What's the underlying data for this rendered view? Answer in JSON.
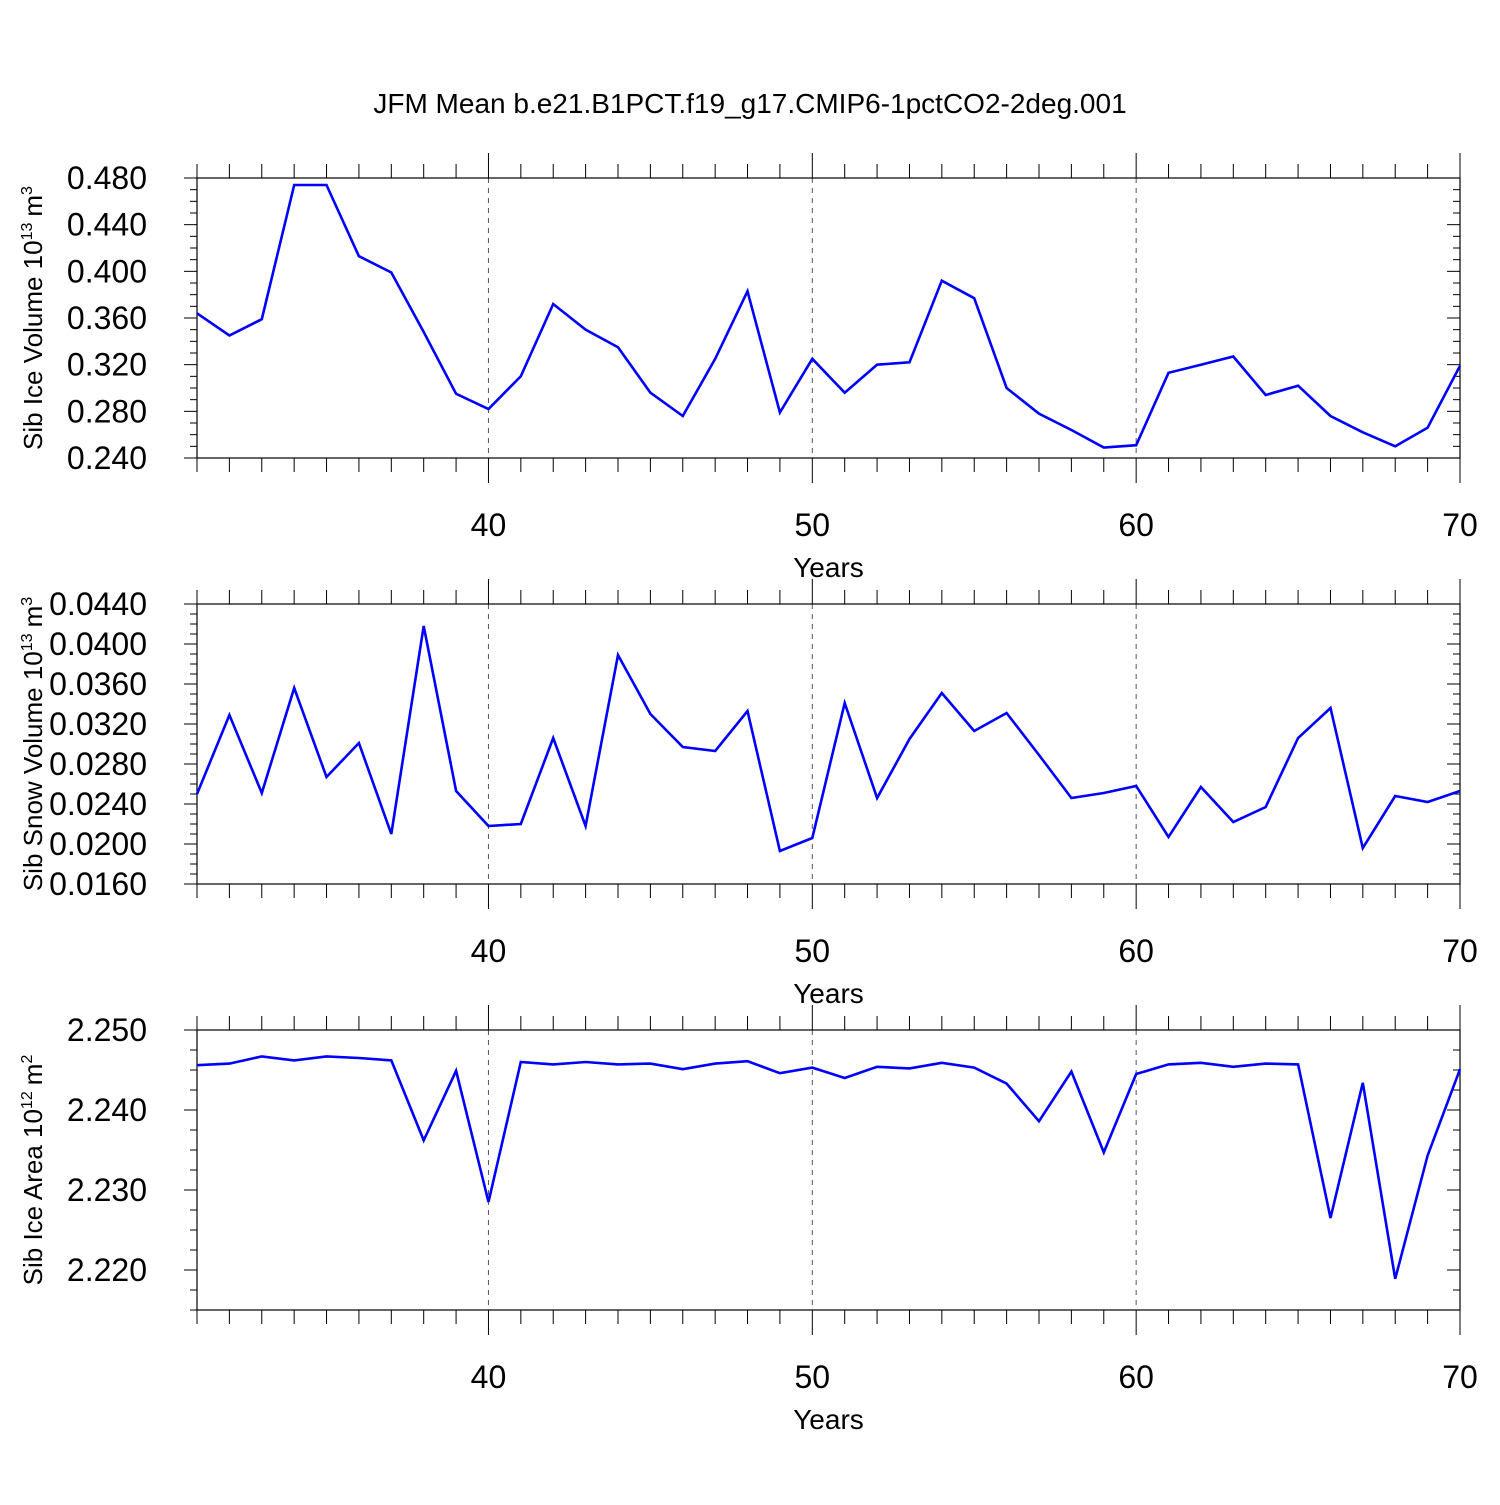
{
  "title": "JFM Mean b.e21.B1PCT.f19_g17.CMIP6-1pctCO2-2deg.001",
  "colors": {
    "line": "#0000ff",
    "axis": "#000000",
    "grid": "#555555"
  },
  "chart_data": [
    {
      "type": "line",
      "ylabel": "Sib Ice Volume 10",
      "ylabel_exponent": "13",
      "ylabel_unit": "m",
      "ylabel_unit_power": "3",
      "xlabel": "Years",
      "xlim": [
        31,
        70
      ],
      "ylim": [
        0.24,
        0.48
      ],
      "xticks": [
        "40",
        "50",
        "60",
        "70"
      ],
      "yticks": [
        "0.240",
        "0.280",
        "0.320",
        "0.360",
        "0.400",
        "0.440",
        "0.480"
      ],
      "grid": "dashed vertical at 40, 50, 60",
      "x": [
        31,
        32,
        33,
        34,
        35,
        36,
        37,
        38,
        39,
        40,
        41,
        42,
        43,
        44,
        45,
        46,
        47,
        48,
        49,
        50,
        51,
        52,
        53,
        54,
        55,
        56,
        57,
        58,
        59,
        60,
        61,
        62,
        63,
        64,
        65,
        66,
        67,
        68,
        69,
        70
      ],
      "series": [
        {
          "values": [
            0.364,
            0.345,
            0.359,
            0.474,
            0.474,
            0.413,
            0.399,
            0.348,
            0.295,
            0.282,
            0.31,
            0.372,
            0.35,
            0.335,
            0.296,
            0.276,
            0.325,
            0.383,
            0.279,
            0.325,
            0.296,
            0.32,
            0.322,
            0.392,
            0.377,
            0.3,
            0.278,
            0.264,
            0.249,
            0.251,
            0.313,
            0.32,
            0.327,
            0.294,
            0.302,
            0.276,
            0.262,
            0.25,
            0.266,
            0.319
          ]
        }
      ]
    },
    {
      "type": "line",
      "ylabel": "Sib Snow Volume 10",
      "ylabel_exponent": "13",
      "ylabel_unit": "m",
      "ylabel_unit_power": "3",
      "xlabel": "Years",
      "xlim": [
        31,
        70
      ],
      "ylim": [
        0.016,
        0.044
      ],
      "xticks": [
        "40",
        "50",
        "60",
        "70"
      ],
      "yticks": [
        "0.0160",
        "0.0200",
        "0.0240",
        "0.0280",
        "0.0320",
        "0.0360",
        "0.0400",
        "0.0440"
      ],
      "grid": "dashed vertical at 40, 50, 60",
      "x": [
        31,
        32,
        33,
        34,
        35,
        36,
        37,
        38,
        39,
        40,
        41,
        42,
        43,
        44,
        45,
        46,
        47,
        48,
        49,
        50,
        51,
        52,
        53,
        54,
        55,
        56,
        57,
        58,
        59,
        60,
        61,
        62,
        63,
        64,
        65,
        66,
        67,
        68,
        69,
        70
      ],
      "series": [
        {
          "values": [
            0.025,
            0.0329,
            0.0251,
            0.0356,
            0.0267,
            0.0301,
            0.021,
            0.0418,
            0.0253,
            0.0218,
            0.022,
            0.0306,
            0.0218,
            0.0389,
            0.033,
            0.0297,
            0.0293,
            0.0333,
            0.0193,
            0.0206,
            0.0341,
            0.0246,
            0.0305,
            0.0351,
            0.0313,
            0.0331,
            0.0289,
            0.0246,
            0.0251,
            0.0258,
            0.0207,
            0.0257,
            0.0222,
            0.0237,
            0.0306,
            0.0336,
            0.0196,
            0.0248,
            0.0242,
            0.0253
          ]
        }
      ]
    },
    {
      "type": "line",
      "ylabel": "Sib Ice Area 10",
      "ylabel_exponent": "12",
      "ylabel_unit": "m",
      "ylabel_unit_power": "2",
      "xlabel": "Years",
      "xlim": [
        31,
        70
      ],
      "ylim": [
        2.215,
        2.25
      ],
      "xticks": [
        "40",
        "50",
        "60",
        "70"
      ],
      "yticks": [
        "2.220",
        "2.230",
        "2.240",
        "2.250"
      ],
      "grid": "dashed vertical at 40, 50, 60",
      "x": [
        31,
        32,
        33,
        34,
        35,
        36,
        37,
        38,
        39,
        40,
        41,
        42,
        43,
        44,
        45,
        46,
        47,
        48,
        49,
        50,
        51,
        52,
        53,
        54,
        55,
        56,
        57,
        58,
        59,
        60,
        61,
        62,
        63,
        64,
        65,
        66,
        67,
        68,
        69,
        70
      ],
      "series": [
        {
          "values": [
            2.2456,
            2.2458,
            2.2467,
            2.2462,
            2.2467,
            2.2465,
            2.2462,
            2.2362,
            2.2449,
            2.2285,
            2.246,
            2.2457,
            2.246,
            2.2457,
            2.2458,
            2.2451,
            2.2458,
            2.2461,
            2.2446,
            2.2453,
            2.244,
            2.2454,
            2.2452,
            2.2459,
            2.2453,
            2.2433,
            2.2386,
            2.2448,
            2.2347,
            2.2445,
            2.2457,
            2.2459,
            2.2454,
            2.2458,
            2.2457,
            2.2265,
            2.2434,
            2.2189,
            2.2343,
            2.2451
          ]
        }
      ]
    }
  ]
}
